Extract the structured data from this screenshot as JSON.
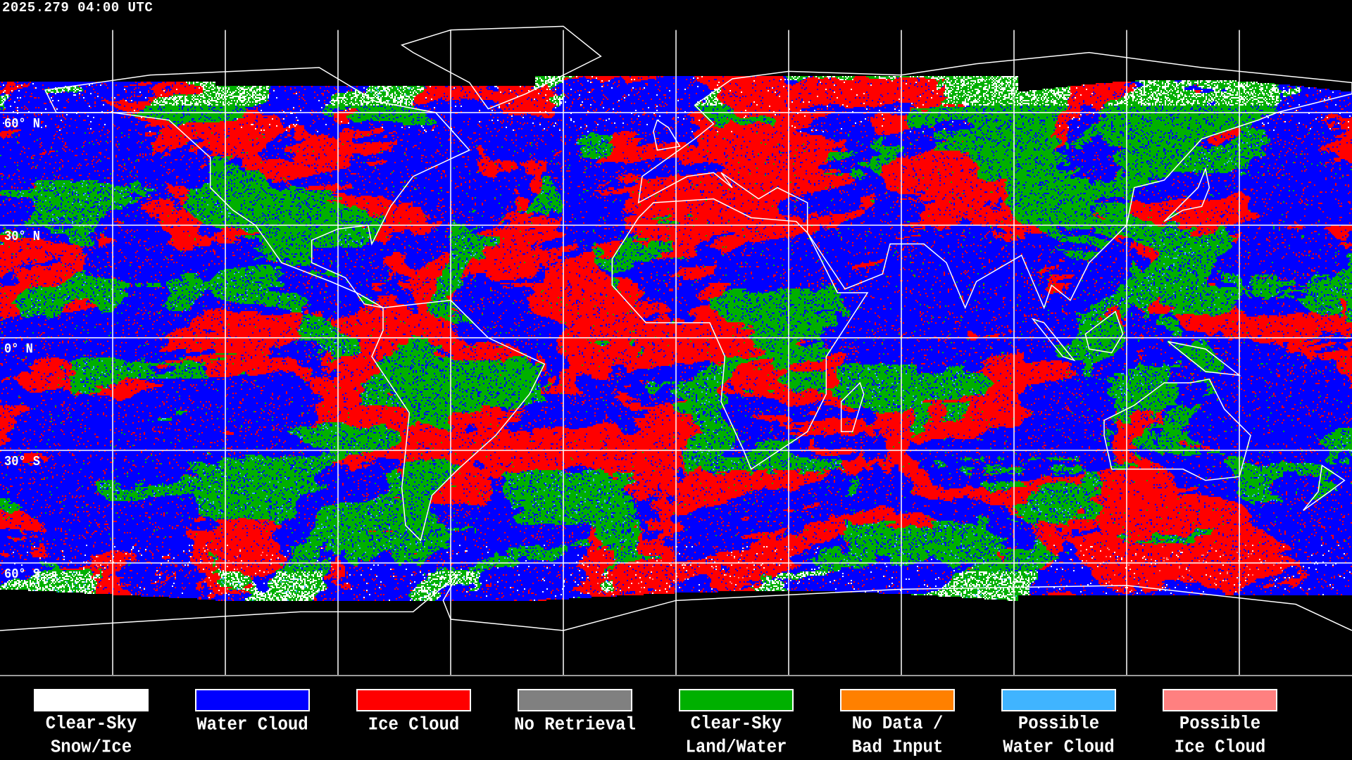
{
  "timestamp": "2025.279 04:00 UTC",
  "lat_labels": [
    "60° N",
    "30° N",
    "0° N",
    "30° S",
    "60° S"
  ],
  "legend": [
    {
      "line1": "Clear-Sky",
      "line2": "Snow/Ice",
      "color": "#ffffff"
    },
    {
      "line1": "Water Cloud",
      "line2": "",
      "color": "#0000ff"
    },
    {
      "line1": "Ice Cloud",
      "line2": "",
      "color": "#ff0000"
    },
    {
      "line1": "No Retrieval",
      "line2": "",
      "color": "#808080"
    },
    {
      "line1": "Clear-Sky",
      "line2": "Land/Water",
      "color": "#00b000"
    },
    {
      "line1": "No Data /",
      "line2": "Bad Input",
      "color": "#ff8000"
    },
    {
      "line1": "Possible",
      "line2": "Water Cloud",
      "color": "#40b4ff"
    },
    {
      "line1": "Possible",
      "line2": "Ice Cloud",
      "color": "#ff8080"
    }
  ],
  "colors": {
    "background": "#000000",
    "gridlines": "#ffffff",
    "coastlines": "#ffffff"
  },
  "grid": {
    "lon_step_deg": 30,
    "lat_step_deg": 30
  }
}
